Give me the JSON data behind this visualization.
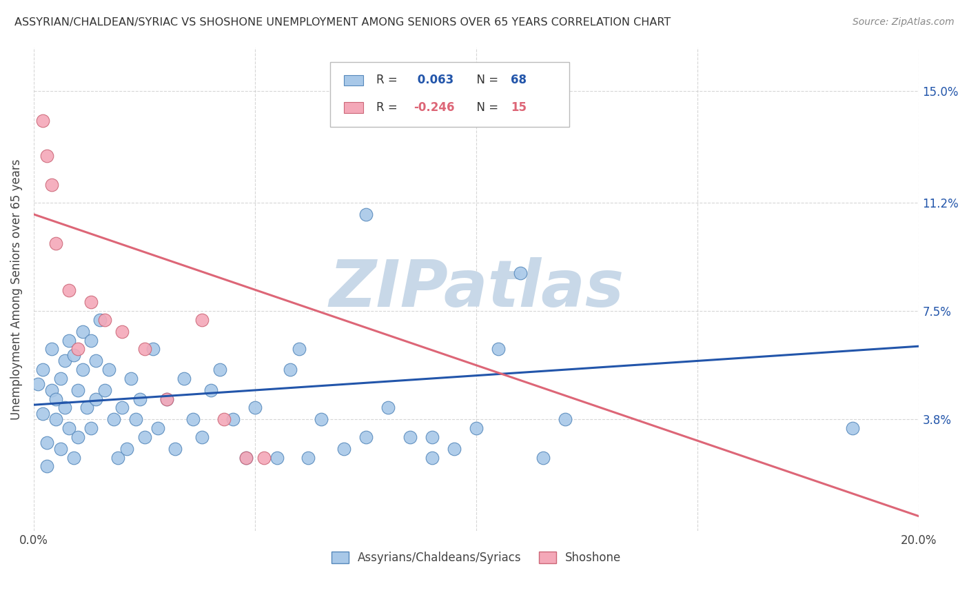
{
  "title": "ASSYRIAN/CHALDEAN/SYRIAC VS SHOSHONE UNEMPLOYMENT AMONG SENIORS OVER 65 YEARS CORRELATION CHART",
  "source": "Source: ZipAtlas.com",
  "ylabel": "Unemployment Among Seniors over 65 years",
  "xlim": [
    0.0,
    0.2
  ],
  "ylim": [
    0.0,
    0.165
  ],
  "ytick_labels_right": [
    "3.8%",
    "7.5%",
    "11.2%",
    "15.0%"
  ],
  "ytick_values_right": [
    0.038,
    0.075,
    0.112,
    0.15
  ],
  "legend_blue_r": "0.063",
  "legend_blue_n": "68",
  "legend_pink_r": "-0.246",
  "legend_pink_n": "15",
  "legend_blue_label": "Assyrians/Chaldeans/Syriacs",
  "legend_pink_label": "Shoshone",
  "blue_scatter_color": "#a8c8e8",
  "pink_scatter_color": "#f4a8b8",
  "blue_edge_color": "#5588bb",
  "pink_edge_color": "#cc6677",
  "blue_line_color": "#2255aa",
  "pink_line_color": "#dd6677",
  "watermark": "ZIPatlas",
  "watermark_color": "#c8d8e8",
  "background_color": "#ffffff",
  "grid_color": "#cccccc",
  "blue_scatter_x": [
    0.001,
    0.002,
    0.002,
    0.003,
    0.003,
    0.004,
    0.004,
    0.005,
    0.005,
    0.006,
    0.006,
    0.007,
    0.007,
    0.008,
    0.008,
    0.009,
    0.009,
    0.01,
    0.01,
    0.011,
    0.011,
    0.012,
    0.013,
    0.013,
    0.014,
    0.014,
    0.015,
    0.016,
    0.017,
    0.018,
    0.019,
    0.02,
    0.021,
    0.022,
    0.023,
    0.024,
    0.025,
    0.027,
    0.028,
    0.03,
    0.032,
    0.034,
    0.036,
    0.038,
    0.04,
    0.042,
    0.045,
    0.048,
    0.05,
    0.055,
    0.058,
    0.062,
    0.065,
    0.07,
    0.075,
    0.08,
    0.085,
    0.09,
    0.095,
    0.1,
    0.105,
    0.11,
    0.115,
    0.12,
    0.06,
    0.075,
    0.09,
    0.185
  ],
  "blue_scatter_y": [
    0.05,
    0.055,
    0.04,
    0.03,
    0.022,
    0.048,
    0.062,
    0.038,
    0.045,
    0.052,
    0.028,
    0.058,
    0.042,
    0.065,
    0.035,
    0.06,
    0.025,
    0.048,
    0.032,
    0.055,
    0.068,
    0.042,
    0.065,
    0.035,
    0.058,
    0.045,
    0.072,
    0.048,
    0.055,
    0.038,
    0.025,
    0.042,
    0.028,
    0.052,
    0.038,
    0.045,
    0.032,
    0.062,
    0.035,
    0.045,
    0.028,
    0.052,
    0.038,
    0.032,
    0.048,
    0.055,
    0.038,
    0.025,
    0.042,
    0.025,
    0.055,
    0.025,
    0.038,
    0.028,
    0.032,
    0.042,
    0.032,
    0.025,
    0.028,
    0.035,
    0.062,
    0.088,
    0.025,
    0.038,
    0.062,
    0.108,
    0.032,
    0.035
  ],
  "pink_scatter_x": [
    0.002,
    0.003,
    0.004,
    0.005,
    0.008,
    0.01,
    0.013,
    0.016,
    0.02,
    0.025,
    0.03,
    0.038,
    0.043,
    0.048,
    0.052
  ],
  "pink_scatter_y": [
    0.14,
    0.128,
    0.118,
    0.098,
    0.082,
    0.062,
    0.078,
    0.072,
    0.068,
    0.062,
    0.045,
    0.072,
    0.038,
    0.025,
    0.025
  ],
  "blue_trend_x": [
    0.0,
    0.2
  ],
  "blue_trend_y": [
    0.043,
    0.063
  ],
  "pink_trend_x": [
    0.0,
    0.2
  ],
  "pink_trend_y": [
    0.108,
    0.005
  ]
}
